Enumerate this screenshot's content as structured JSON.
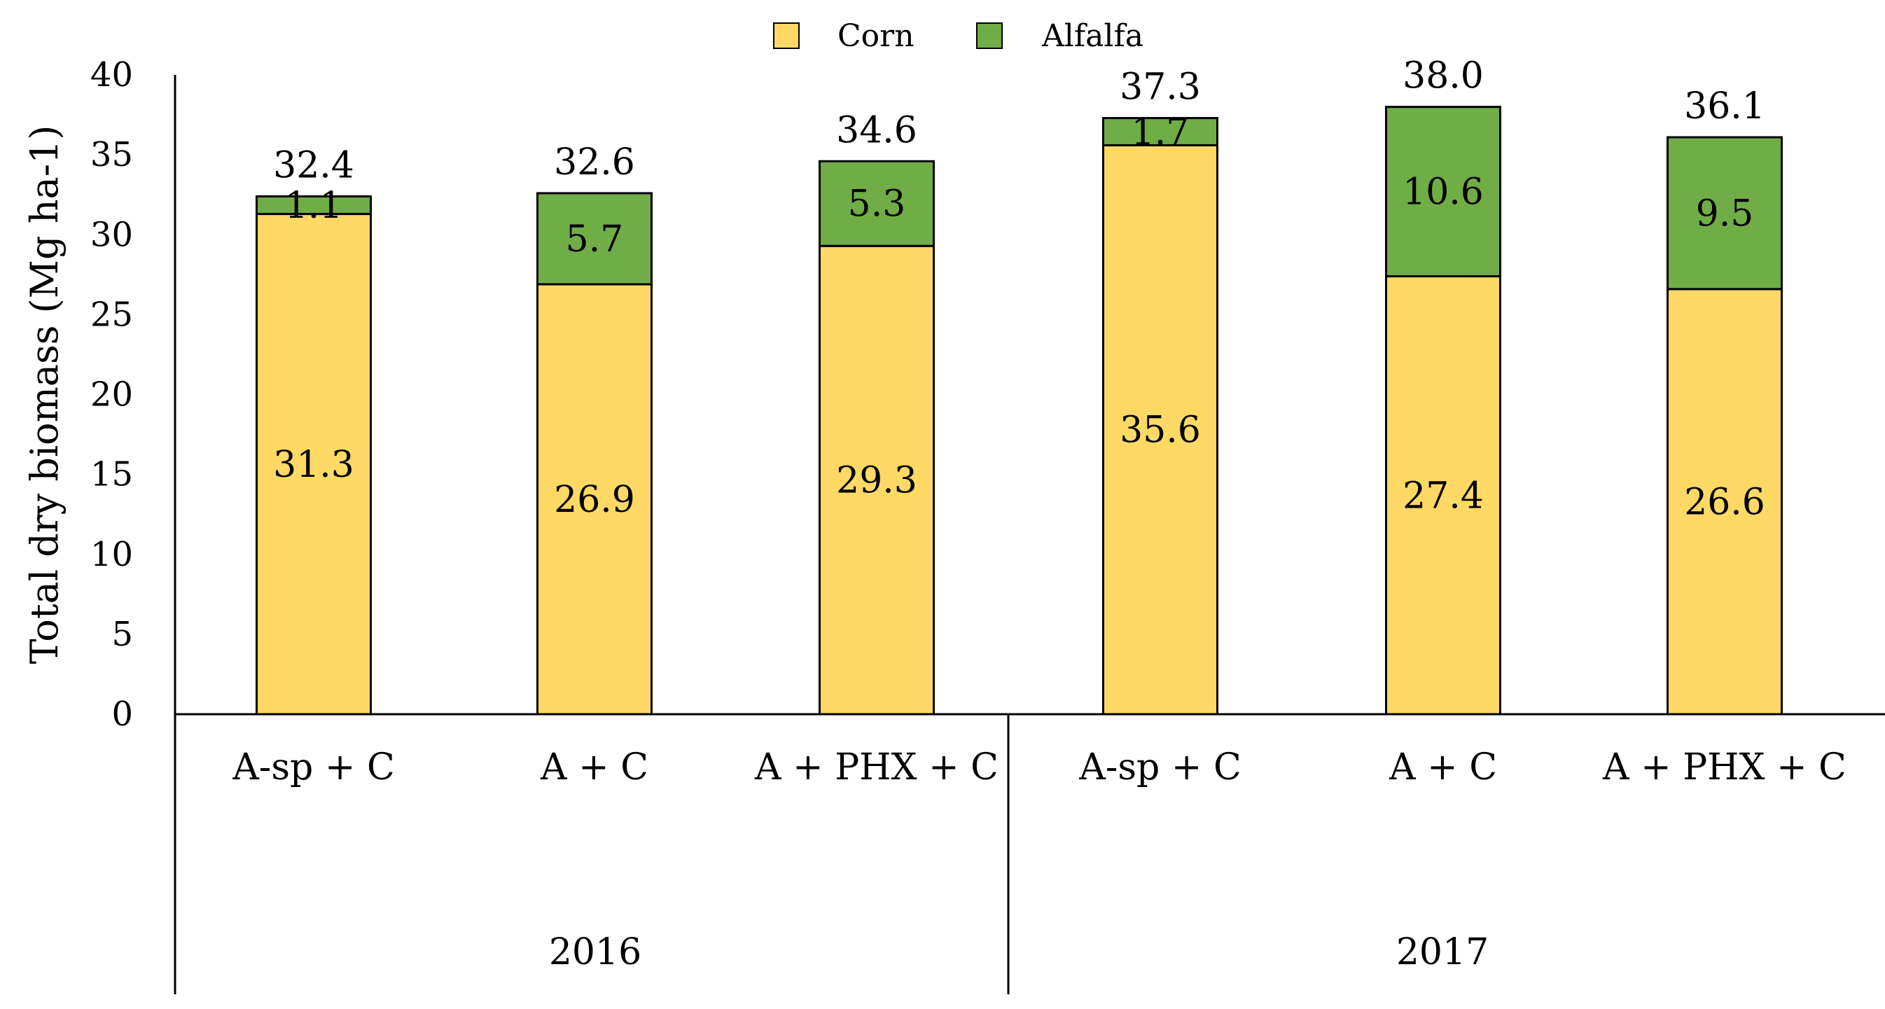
{
  "chart_data": {
    "type": "bar",
    "stacked": true,
    "title": "",
    "xlabel": "",
    "ylabel": "Total dry biomass (Mg ha-1)",
    "ylim": [
      0,
      40
    ],
    "yticks": [
      0,
      5,
      10,
      15,
      20,
      25,
      30,
      35,
      40
    ],
    "categories": [
      "A-sp + C",
      "A + C",
      "A + PHX + C",
      "A-sp + C",
      "A + C",
      "A + PHX + C"
    ],
    "groups": [
      {
        "label": "2016",
        "categories": [
          0,
          1,
          2
        ]
      },
      {
        "label": "2017",
        "categories": [
          3,
          4,
          5
        ]
      }
    ],
    "series": [
      {
        "name": "Corn",
        "color": "#FFD966",
        "values": [
          31.3,
          26.9,
          29.3,
          35.6,
          27.4,
          26.6
        ],
        "labels": [
          "31.3",
          "26.9",
          "29.3",
          "35.6",
          "27.4",
          "26.6"
        ]
      },
      {
        "name": "Alfalfa",
        "color": "#70AD47",
        "values": [
          1.1,
          5.7,
          5.3,
          1.7,
          10.6,
          9.5
        ],
        "labels": [
          "1.1",
          "5.7",
          "5.3",
          "1.7",
          "10.6",
          "9.5"
        ]
      }
    ],
    "totals": [
      "32.4",
      "32.6",
      "34.6",
      "37.3",
      "38.0",
      "36.1"
    ],
    "legend": {
      "position": "top-center",
      "entries": [
        "Corn",
        "Alfalfa"
      ]
    },
    "grid": false
  }
}
